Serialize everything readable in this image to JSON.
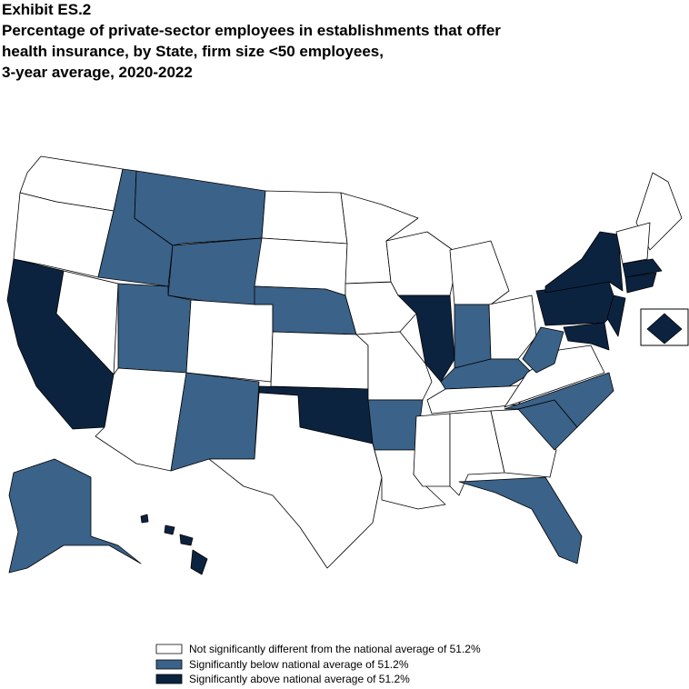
{
  "header": {
    "exhibit": "Exhibit ES.2",
    "title_lines": [
      "Percentage of private-sector employees in establishments that offer",
      "health insurance, by State, firm size <50 employees,",
      "3-year average, 2020-2022"
    ]
  },
  "legend": [
    {
      "label": "Not significantly different from the national average of 51.2%",
      "color": "#ffffff"
    },
    {
      "label": "Significantly below national average of 51.2%",
      "color": "#3b6288"
    },
    {
      "label": "Significantly above national average of 51.2%",
      "color": "#0c2340"
    }
  ]
}
